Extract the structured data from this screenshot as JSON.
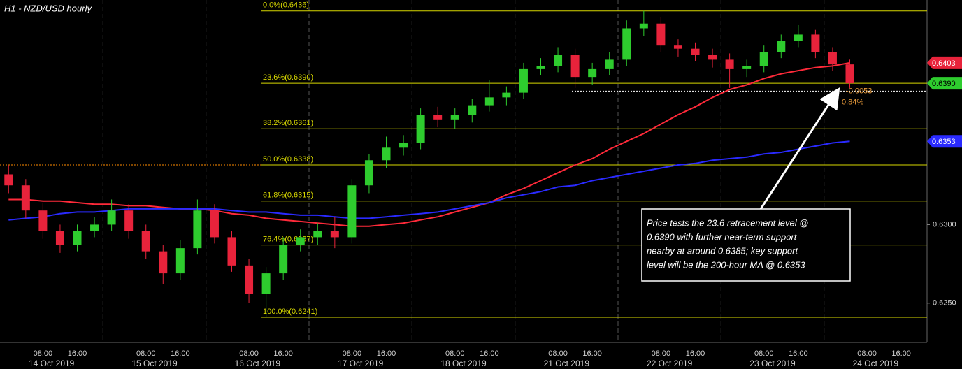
{
  "chart_data": {
    "type": "candlestick",
    "title": "H1 - NZD/USD hourly",
    "categories": [
      null,
      null,
      "08:00",
      null,
      "16:00",
      null,
      null,
      null,
      "08:00",
      null,
      "16:00",
      null,
      null,
      null,
      "08:00",
      null,
      "16:00",
      null,
      null,
      null,
      "08:00",
      null,
      "16:00",
      null,
      null,
      null,
      "08:00",
      null,
      "16:00",
      null,
      null,
      null,
      "08:00",
      null,
      "16:00",
      null,
      null,
      null,
      "08:00",
      null,
      "16:00",
      null,
      null,
      null,
      "08:00",
      null,
      "16:00",
      null,
      null,
      null,
      "08:00",
      null,
      "16:00",
      null
    ],
    "date_labels": [
      "14 Oct 2019",
      "15 Oct 2019",
      "16 Oct 2019",
      "17 Oct 2019",
      "18 Oct 2019",
      "21 Oct 2019",
      "22 Oct 2019",
      "23 Oct 2019",
      "24 Oct 2019"
    ],
    "open": [
      0.6332,
      0.6325,
      0.6309,
      0.6296,
      0.6287,
      0.6296,
      0.63,
      0.6309,
      0.6296,
      0.6283,
      0.6269,
      0.6285,
      0.6309,
      0.6292,
      0.6274,
      0.6256,
      0.6269,
      0.6287,
      0.6292,
      0.6296,
      0.6292,
      0.6325,
      0.6341,
      0.6349,
      0.6352,
      0.637,
      0.6367,
      0.637,
      0.6376,
      0.6381,
      0.6384,
      0.6399,
      0.6401,
      0.6408,
      0.6394,
      0.6399,
      0.6405,
      0.6425,
      0.6428,
      0.6414,
      0.6412,
      0.6408,
      0.6405,
      0.6399,
      0.6401,
      0.641,
      0.6417,
      0.6421,
      0.641,
      0.6402,
      null,
      null,
      null,
      null
    ],
    "high": [
      0.6338,
      0.6329,
      0.6314,
      0.63,
      0.63,
      0.6305,
      0.6316,
      0.6313,
      0.63,
      0.6287,
      0.629,
      0.6316,
      0.6313,
      0.6296,
      0.6278,
      0.6273,
      0.6292,
      0.6297,
      0.6301,
      0.6305,
      0.6329,
      0.6345,
      0.6356,
      0.6357,
      0.6374,
      0.6375,
      0.6374,
      0.638,
      0.6392,
      0.6388,
      0.6403,
      0.6406,
      0.6413,
      0.6412,
      0.6403,
      0.641,
      0.643,
      0.6436,
      0.6432,
      0.6418,
      0.6416,
      0.6412,
      0.6409,
      0.6405,
      0.6414,
      0.6421,
      0.6427,
      0.6424,
      0.6413,
      0.6405,
      null,
      null,
      null,
      null
    ],
    "low": [
      0.632,
      0.6304,
      0.6291,
      0.6282,
      0.6283,
      0.6292,
      0.6296,
      0.6291,
      0.6278,
      0.6262,
      0.6265,
      0.6281,
      0.6288,
      0.627,
      0.625,
      0.6241,
      0.6265,
      0.6283,
      0.6287,
      0.6285,
      0.6288,
      0.632,
      0.6336,
      0.6344,
      0.6348,
      0.6362,
      0.6361,
      0.6365,
      0.6372,
      0.6376,
      0.638,
      0.6395,
      0.6397,
      0.6387,
      0.6389,
      0.6395,
      0.6401,
      0.642,
      0.641,
      0.6407,
      0.6404,
      0.64,
      0.6387,
      0.6394,
      0.6397,
      0.6406,
      0.6413,
      0.6406,
      0.6398,
      0.6387,
      null,
      null,
      null,
      null
    ],
    "close": [
      0.6325,
      0.6309,
      0.6296,
      0.6287,
      0.6296,
      0.63,
      0.6309,
      0.6296,
      0.6283,
      0.6269,
      0.6285,
      0.6309,
      0.6292,
      0.6274,
      0.6256,
      0.6269,
      0.6287,
      0.6292,
      0.6296,
      0.6292,
      0.6325,
      0.6341,
      0.6349,
      0.6352,
      0.637,
      0.6367,
      0.637,
      0.6376,
      0.6381,
      0.6384,
      0.6399,
      0.6401,
      0.6408,
      0.6394,
      0.6399,
      0.6405,
      0.6425,
      0.6428,
      0.6414,
      0.6412,
      0.6408,
      0.6405,
      0.6399,
      0.6401,
      0.641,
      0.6417,
      0.6421,
      0.641,
      0.6402,
      0.639,
      null,
      null,
      null,
      null
    ],
    "up_color": "#2ecc2e",
    "down_color": "#e8233b",
    "series": [
      {
        "color": "#ff2a3a",
        "values": [
          0.6316,
          0.6316,
          0.6315,
          0.6315,
          0.6314,
          0.6313,
          0.6313,
          0.6312,
          0.6312,
          0.6311,
          0.631,
          0.631,
          0.6309,
          0.6307,
          0.6306,
          0.6304,
          0.6303,
          0.6302,
          0.6301,
          0.63,
          0.6299,
          0.6299,
          0.63,
          0.6301,
          0.6303,
          0.6305,
          0.6308,
          0.6311,
          0.6314,
          0.6319,
          0.6323,
          0.6328,
          0.6333,
          0.6338,
          0.6342,
          0.6348,
          0.6353,
          0.6358,
          0.6364,
          0.637,
          0.6375,
          0.6381,
          0.6386,
          0.6389,
          0.6393,
          0.6396,
          0.6398,
          0.64,
          0.6401,
          0.6403,
          null,
          null,
          null,
          null
        ]
      },
      {
        "color": "#2a2aff",
        "values": [
          0.6303,
          0.6304,
          0.6305,
          0.6307,
          0.6308,
          0.6308,
          0.6309,
          0.631,
          0.631,
          0.631,
          0.631,
          0.631,
          0.631,
          0.6309,
          0.6308,
          0.6308,
          0.6307,
          0.6306,
          0.6306,
          0.6305,
          0.6304,
          0.6304,
          0.6305,
          0.6306,
          0.6307,
          0.6308,
          0.631,
          0.6312,
          0.6314,
          0.6317,
          0.6319,
          0.6321,
          0.6324,
          0.6325,
          0.6328,
          0.633,
          0.6332,
          0.6334,
          0.6336,
          0.6338,
          0.6339,
          0.6341,
          0.6342,
          0.6343,
          0.6345,
          0.6346,
          0.6348,
          0.635,
          0.6352,
          0.6353,
          null,
          null,
          null,
          null
        ]
      }
    ],
    "ylim": [
      0.6225,
      0.6443
    ],
    "yticks": [
      {
        "value": 0.625,
        "label": "0.6250"
      },
      {
        "value": 0.63,
        "label": "0.6300"
      }
    ],
    "fib_levels": [
      {
        "label": "0.0%(0.6436)",
        "value": 0.6436
      },
      {
        "label": "23.6%(0.6390)",
        "value": 0.639
      },
      {
        "label": "38.2%(0.6361)",
        "value": 0.6361
      },
      {
        "label": "50.0%(0.6338)",
        "value": 0.6338
      },
      {
        "label": "61.8%(0.6315)",
        "value": 0.6315
      },
      {
        "label": "76.4%(0.6287)",
        "value": 0.6287
      },
      {
        "label": "100.0%(0.6241)",
        "value": 0.6241
      }
    ],
    "fib_color": "#d8d800",
    "reference_line": {
      "value": 0.6338,
      "color": "#ff8c00"
    },
    "support_line": {
      "value": 0.6385,
      "color": "#ffffff"
    },
    "price_markers": [
      {
        "value": 0.6403,
        "color": "#e8233b"
      },
      {
        "value": 0.639,
        "label": "0.6390",
        "color": "#2ecc2e"
      },
      {
        "value": 0.6353,
        "color": "#2a2aff"
      }
    ],
    "change": -0.0053,
    "change_pct": {
      "value": 0.84,
      "label": "0.84%"
    },
    "annotation_lines": [
      "Price tests the 23.6 retracement level @",
      "0.6390 with further near-term support",
      "nearby at around 0.6385; key support",
      "level will be the 200-hour MA @ 0.6353"
    ]
  }
}
